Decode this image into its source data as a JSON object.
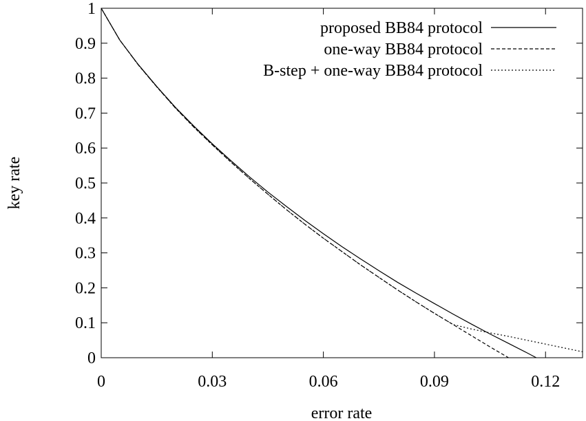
{
  "chart_data": {
    "type": "line",
    "xlabel": "error rate",
    "ylabel": "key rate",
    "xlim": [
      0,
      0.13
    ],
    "ylim": [
      0,
      1
    ],
    "xticks": [
      0,
      0.03,
      0.06,
      0.09,
      0.12
    ],
    "xtick_labels": [
      "0",
      "0.03",
      "0.06",
      "0.09",
      "0.12"
    ],
    "yticks": [
      0,
      0.1,
      0.2,
      0.3,
      0.4,
      0.5,
      0.6,
      0.7,
      0.8,
      0.9,
      1
    ],
    "ytick_labels": [
      "0",
      "0.1",
      "0.2",
      "0.3",
      "0.4",
      "0.5",
      "0.6",
      "0.7",
      "0.8",
      "0.9",
      "1"
    ],
    "grid": false,
    "legend_position": "top-right",
    "series": [
      {
        "name": "proposed BB84 protocol",
        "line_style": "solid",
        "color": "#000000",
        "x": [
          0,
          0.005,
          0.01,
          0.015,
          0.02,
          0.025,
          0.03,
          0.035,
          0.04,
          0.045,
          0.05,
          0.055,
          0.06,
          0.065,
          0.07,
          0.075,
          0.08,
          0.085,
          0.09,
          0.095,
          0.1,
          0.105,
          0.11,
          0.115,
          0.1175
        ],
        "y": [
          1.0,
          0.909,
          0.839,
          0.776,
          0.717,
          0.663,
          0.612,
          0.564,
          0.518,
          0.474,
          0.433,
          0.393,
          0.355,
          0.318,
          0.283,
          0.249,
          0.216,
          0.185,
          0.155,
          0.125,
          0.096,
          0.068,
          0.041,
          0.014,
          0.0
        ]
      },
      {
        "name": "one-way BB84 protocol",
        "line_style": "dashed",
        "color": "#000000",
        "x": [
          0,
          0.005,
          0.01,
          0.015,
          0.02,
          0.025,
          0.03,
          0.035,
          0.04,
          0.045,
          0.05,
          0.055,
          0.06,
          0.065,
          0.07,
          0.075,
          0.08,
          0.085,
          0.09,
          0.095,
          0.1,
          0.105,
          0.11
        ],
        "y": [
          1.0,
          0.909,
          0.838,
          0.775,
          0.715,
          0.66,
          0.609,
          0.56,
          0.513,
          0.468,
          0.424,
          0.382,
          0.342,
          0.304,
          0.266,
          0.23,
          0.194,
          0.16,
          0.127,
          0.095,
          0.063,
          0.031,
          0.0
        ]
      },
      {
        "name": "B-step + one-way BB84 protocol",
        "line_style": "dotted",
        "color": "#000000",
        "x": [
          0,
          0.005,
          0.01,
          0.015,
          0.02,
          0.025,
          0.03,
          0.035,
          0.04,
          0.045,
          0.05,
          0.055,
          0.06,
          0.065,
          0.07,
          0.075,
          0.08,
          0.085,
          0.09,
          0.095,
          0.1,
          0.105,
          0.11,
          0.115,
          0.12,
          0.125,
          0.13
        ],
        "y": [
          1.0,
          0.909,
          0.838,
          0.775,
          0.715,
          0.66,
          0.609,
          0.56,
          0.513,
          0.468,
          0.424,
          0.382,
          0.342,
          0.304,
          0.266,
          0.23,
          0.194,
          0.16,
          0.127,
          0.095,
          0.082,
          0.071,
          0.061,
          0.05,
          0.039,
          0.028,
          0.017
        ]
      }
    ]
  }
}
